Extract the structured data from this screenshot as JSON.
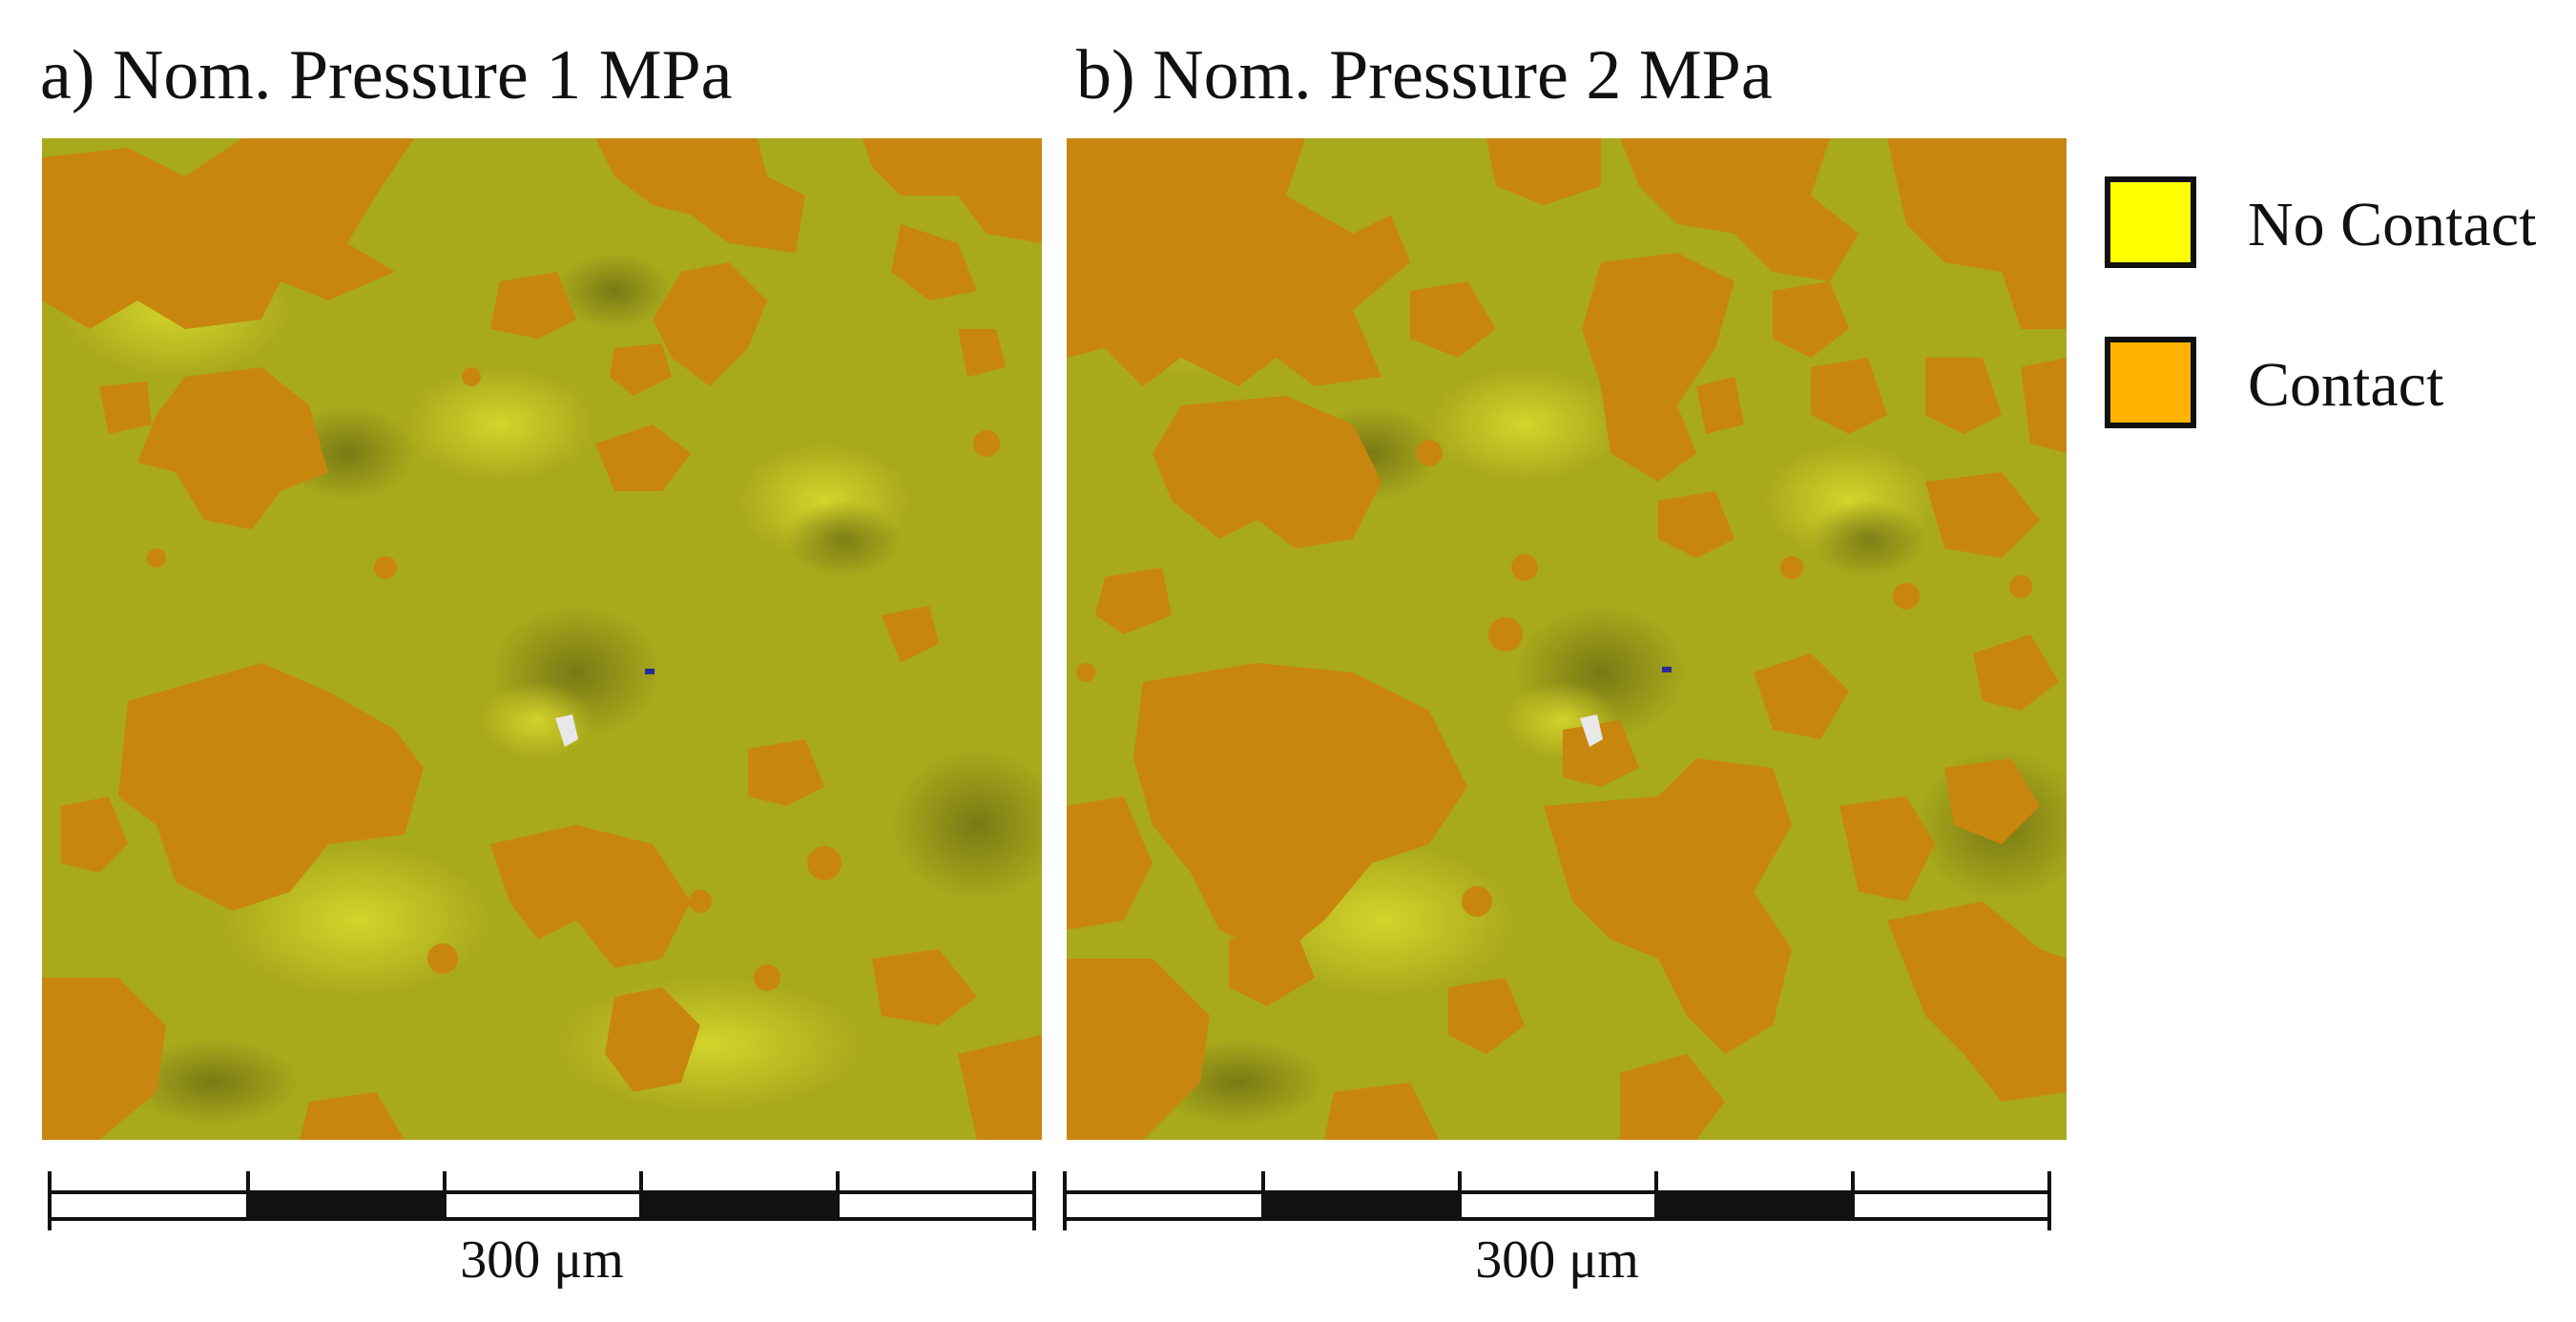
{
  "panels": [
    {
      "title": "a) Nom. Pressure 1 MPa",
      "scale_label": "300 μm"
    },
    {
      "title": "b) Nom. Pressure 2 MPa",
      "scale_label": "300 μm"
    }
  ],
  "legend": [
    {
      "label": "No Contact",
      "color": "#ffff00"
    },
    {
      "label": "Contact",
      "color": "#ffb300"
    }
  ],
  "colors": {
    "surface": "#a9a91c",
    "contact_patch": "#c8860e",
    "scalebar_dark": "#111111"
  }
}
